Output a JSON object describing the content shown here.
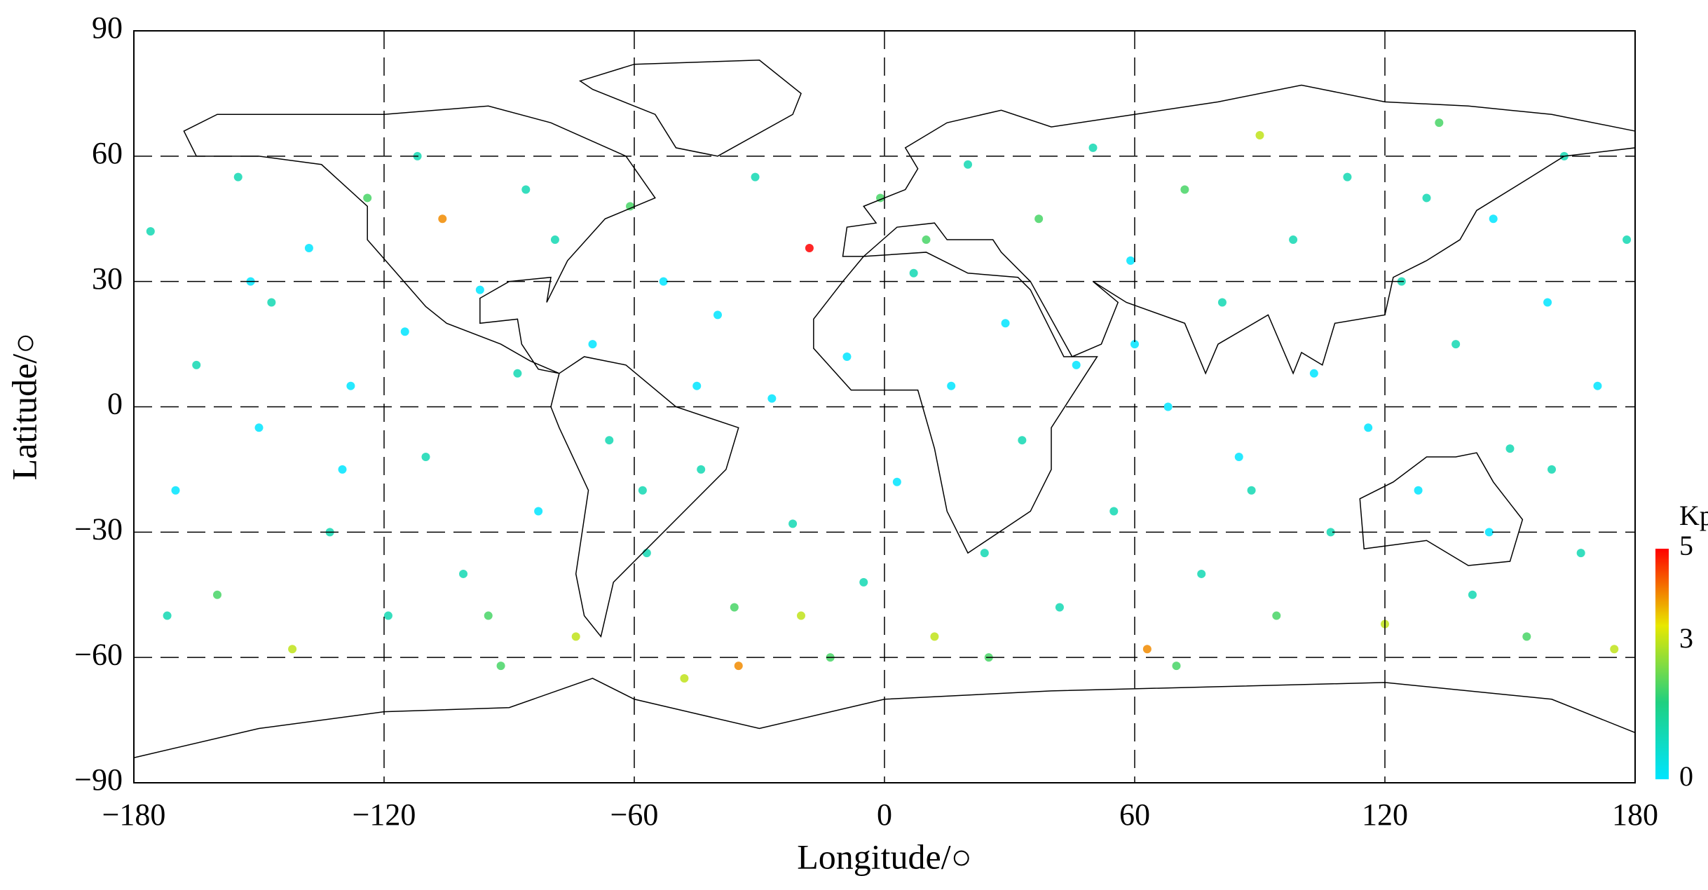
{
  "chart_data": {
    "type": "scatter",
    "xlabel": "Longitude/○",
    "ylabel": "Latitude/○",
    "xlim": [
      -180,
      180
    ],
    "ylim": [
      -90,
      90
    ],
    "xticks": [
      {
        "value": -180,
        "label": "−180"
      },
      {
        "value": -120,
        "label": "−120"
      },
      {
        "value": -60,
        "label": "−60"
      },
      0,
      60,
      120,
      180
    ],
    "yticks": [
      {
        "value": -90,
        "label": "−90"
      },
      {
        "value": -60,
        "label": "−60"
      },
      {
        "value": -30,
        "label": "−30"
      },
      0,
      30,
      60,
      90
    ],
    "grid": true,
    "colorbar": {
      "title": "Kp",
      "clim": [
        0,
        5
      ],
      "ticks": [
        0,
        3,
        5
      ],
      "colors": [
        "#00e5ff",
        "#20d080",
        "#e8e800",
        "#ff0000"
      ]
    },
    "series": [
      {
        "x": [
          -176,
          -170,
          -165,
          -160,
          -155,
          -150,
          -147,
          -142,
          -138,
          -133,
          -128,
          -124,
          -119,
          -115,
          -110,
          -106,
          -101,
          -97,
          -92,
          -88,
          -83,
          -79,
          -74,
          -70,
          -66,
          -61,
          -57,
          -53,
          -48,
          -44,
          -40,
          -36,
          -31,
          -27,
          -22,
          -18,
          -13,
          -9,
          -5,
          -1,
          3,
          7,
          12,
          16,
          20,
          24,
          29,
          33,
          37,
          42,
          46,
          50,
          55,
          59,
          63,
          68,
          72,
          76,
          81,
          85,
          90,
          94,
          98,
          103,
          107,
          111,
          116,
          120,
          124,
          128,
          133,
          137,
          141,
          146,
          150,
          154,
          159,
          163,
          167,
          171,
          175,
          178,
          -172,
          -152,
          -95,
          -58,
          -20,
          10,
          60,
          130,
          -130,
          -86,
          -35,
          25,
          88,
          145,
          -112,
          -45,
          70,
          160
        ],
        "values": [
          42,
          -20,
          10,
          -45,
          55,
          -5,
          25,
          -58,
          38,
          -30,
          5,
          50,
          -50,
          18,
          -12,
          45,
          -40,
          28,
          -62,
          8,
          -25,
          40,
          -55,
          15,
          -8,
          48,
          -35,
          30,
          -65,
          -15,
          22,
          -48,
          55,
          2,
          -28,
          38,
          -60,
          12,
          -42,
          50,
          -18,
          32,
          -55,
          5,
          58,
          -35,
          20,
          -8,
          45,
          -48,
          10,
          62,
          -25,
          35,
          -58,
          0,
          52,
          -40,
          25,
          -12,
          65,
          -50,
          40,
          8,
          -30,
          55,
          -5,
          -52,
          30,
          -20,
          68,
          15,
          -45,
          45,
          -10,
          -55,
          25,
          60,
          -35,
          5,
          -58,
          40,
          -50,
          30,
          -50,
          -20,
          -50,
          40,
          15,
          50,
          -15,
          52,
          -62,
          -60,
          -20,
          -30,
          60,
          5,
          -62,
          -15
        ],
        "kp": [
          1,
          0,
          1,
          2,
          1,
          0,
          1,
          3,
          0,
          1,
          0,
          2,
          1,
          0,
          1,
          4,
          1,
          0,
          2,
          1,
          0,
          1,
          3,
          0,
          1,
          2,
          1,
          0,
          3,
          1,
          0,
          2,
          1,
          0,
          1,
          5,
          2,
          0,
          1,
          2,
          0,
          1,
          3,
          0,
          1,
          1,
          0,
          1,
          2,
          1,
          0,
          1,
          1,
          0,
          4,
          0,
          2,
          1,
          1,
          0,
          3,
          2,
          1,
          0,
          1,
          1,
          0,
          3,
          1,
          0,
          2,
          1,
          1,
          0,
          1,
          2,
          0,
          1,
          1,
          0,
          3,
          1,
          1,
          0,
          2,
          1,
          3,
          2,
          0,
          1,
          0,
          1,
          4,
          2,
          1,
          0,
          1,
          0,
          2,
          1
        ]
      }
    ]
  }
}
